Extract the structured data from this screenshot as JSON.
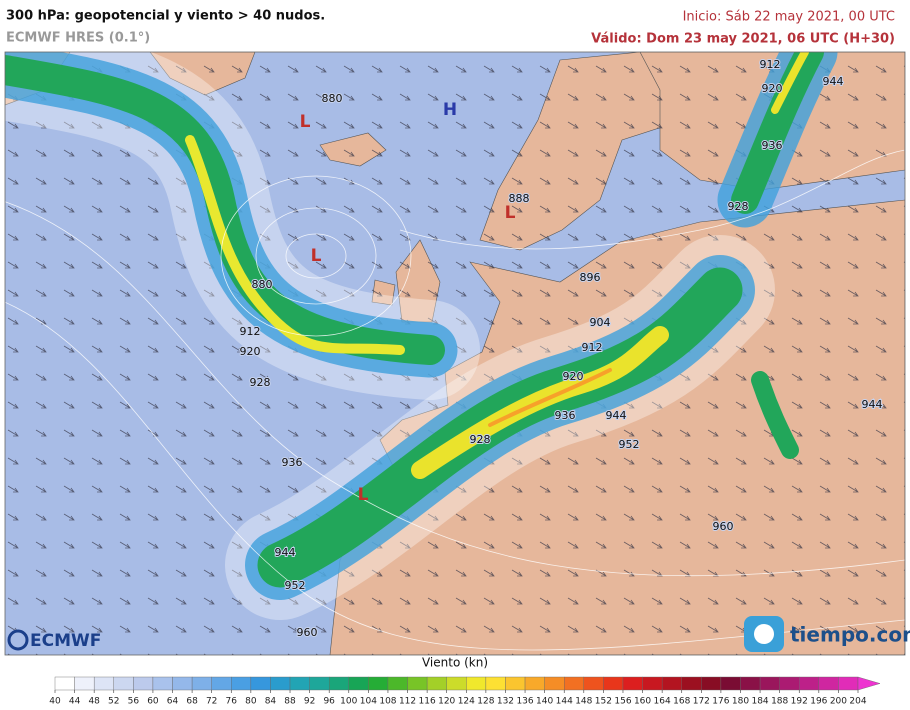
{
  "header": {
    "title": "300 hPa: geopotencial y viento > 40 nudos.",
    "model": "ECMWF HRES (0.1°)",
    "init": "Inicio: Sáb 22 may 2021, 00 UTC",
    "valid": "Válido: Dom 23 may 2021, 06 UTC (H+30)"
  },
  "map": {
    "contour_labels": [
      880,
      880,
      912,
      920,
      928,
      936,
      944,
      952,
      960,
      888,
      896,
      904,
      912,
      920,
      928,
      936,
      944,
      952,
      960,
      912,
      920,
      944,
      936,
      928,
      944
    ],
    "centers": [
      {
        "label": "L",
        "color": "#c0302a"
      },
      {
        "label": "H",
        "color": "#2a3aa8"
      },
      {
        "label": "L",
        "color": "#c0302a"
      },
      {
        "label": "L",
        "color": "#c0302a"
      },
      {
        "label": "L",
        "color": "#c0302a"
      }
    ]
  },
  "colorbar": {
    "title": "Viento (kn)",
    "ticks": [
      40,
      44,
      48,
      52,
      56,
      60,
      64,
      68,
      72,
      76,
      80,
      84,
      88,
      92,
      96,
      100,
      104,
      108,
      112,
      116,
      120,
      124,
      128,
      132,
      136,
      140,
      144,
      148,
      152,
      156,
      160,
      164,
      168,
      172,
      176,
      180,
      184,
      188,
      192,
      196,
      200,
      204
    ],
    "colors": [
      "#ffffff",
      "#eef1fb",
      "#dde4f6",
      "#ccd7f0",
      "#bccaec",
      "#a9c2ec",
      "#94b8ea",
      "#7eb0e8",
      "#63a7e6",
      "#4a9fe3",
      "#3697dd",
      "#2a9ccd",
      "#22a4b4",
      "#1ea79a",
      "#1aa67a",
      "#18a556",
      "#25ad36",
      "#4cb82a",
      "#78c427",
      "#a3d028",
      "#ccdc2a",
      "#f0e82c",
      "#fde033",
      "#fbc52f",
      "#f8a92a",
      "#f58d26",
      "#f27022",
      "#ee531e",
      "#e8361b",
      "#dc1f1f",
      "#c81820",
      "#b31420",
      "#9c1020",
      "#880d24",
      "#7a0c33",
      "#8a1147",
      "#9a165c",
      "#ab1b72",
      "#bd2089",
      "#cf26a0",
      "#e12cb8"
    ],
    "over_color": "#ee33d0"
  },
  "logos": {
    "left": "ECMWF",
    "right": "tiempo.com"
  }
}
